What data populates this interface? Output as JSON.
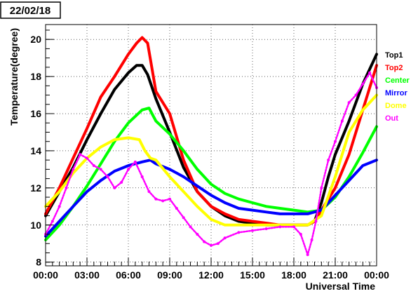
{
  "chart_data": {
    "type": "line",
    "title": "22/02/18",
    "xlabel": "Universal Time",
    "ylabel": "Temperature(degree)",
    "xlim": [
      0,
      24
    ],
    "ylim": [
      7.8,
      20.8
    ],
    "grid": true,
    "legend_placement": "right",
    "x_ticks": [
      {
        "value": 0,
        "label": "00:00"
      },
      {
        "value": 3,
        "label": "03:00"
      },
      {
        "value": 6,
        "label": "06:00"
      },
      {
        "value": 9,
        "label": "09:00"
      },
      {
        "value": 12,
        "label": "12:00"
      },
      {
        "value": 15,
        "label": "15:00"
      },
      {
        "value": 18,
        "label": "18:00"
      },
      {
        "value": 21,
        "label": "21:00"
      },
      {
        "value": 24,
        "label": "00:00"
      }
    ],
    "y_ticks": [
      {
        "value": 8,
        "label": "8"
      },
      {
        "value": 10,
        "label": "10"
      },
      {
        "value": 12,
        "label": "12"
      },
      {
        "value": 14,
        "label": "14"
      },
      {
        "value": 16,
        "label": "16"
      },
      {
        "value": 18,
        "label": "18"
      },
      {
        "value": 20,
        "label": "20"
      }
    ],
    "series": [
      {
        "name": "Top1",
        "color": "#000000",
        "points": [
          [
            0,
            10.5
          ],
          [
            1,
            11.8
          ],
          [
            2,
            13.1
          ],
          [
            3,
            14.6
          ],
          [
            4,
            16.0
          ],
          [
            5,
            17.3
          ],
          [
            6,
            18.2
          ],
          [
            6.6,
            18.6
          ],
          [
            7,
            18.6
          ],
          [
            7.4,
            18.1
          ],
          [
            8,
            16.8
          ],
          [
            9,
            15.0
          ],
          [
            10,
            13.1
          ],
          [
            11,
            11.8
          ],
          [
            12,
            11.0
          ],
          [
            13,
            10.5
          ],
          [
            14,
            10.2
          ],
          [
            15,
            10.1
          ],
          [
            16,
            10.0
          ],
          [
            17,
            10.0
          ],
          [
            18,
            10.0
          ],
          [
            19,
            10.0
          ],
          [
            19.5,
            10.2
          ],
          [
            20,
            11.2
          ],
          [
            20.5,
            12.6
          ],
          [
            21,
            13.8
          ],
          [
            22,
            15.6
          ],
          [
            23,
            17.6
          ],
          [
            24,
            19.2
          ]
        ]
      },
      {
        "name": "Top2",
        "color": "#ff0000",
        "points": [
          [
            0,
            10.6
          ],
          [
            1,
            12.0
          ],
          [
            2,
            13.6
          ],
          [
            3,
            15.2
          ],
          [
            4,
            16.9
          ],
          [
            5,
            18.0
          ],
          [
            6,
            19.2
          ],
          [
            6.6,
            19.8
          ],
          [
            7,
            20.1
          ],
          [
            7.4,
            19.8
          ],
          [
            8,
            17.2
          ],
          [
            9,
            16.0
          ],
          [
            10,
            13.5
          ],
          [
            11,
            11.8
          ],
          [
            12,
            11.0
          ],
          [
            13,
            10.6
          ],
          [
            14,
            10.3
          ],
          [
            15,
            10.2
          ],
          [
            16,
            10.1
          ],
          [
            17,
            10.0
          ],
          [
            18,
            10.0
          ],
          [
            19,
            10.0
          ],
          [
            19.5,
            10.2
          ],
          [
            20,
            10.8
          ],
          [
            21,
            12.0
          ],
          [
            22,
            13.8
          ],
          [
            23,
            16.2
          ],
          [
            24,
            18.6
          ]
        ]
      },
      {
        "name": "Center",
        "color": "#00ff00",
        "points": [
          [
            0,
            9.2
          ],
          [
            1,
            10.0
          ],
          [
            2,
            11.0
          ],
          [
            3,
            12.1
          ],
          [
            4,
            13.3
          ],
          [
            5,
            14.5
          ],
          [
            6,
            15.5
          ],
          [
            7,
            16.2
          ],
          [
            7.5,
            16.3
          ],
          [
            8,
            15.6
          ],
          [
            9,
            14.9
          ],
          [
            10,
            14.0
          ],
          [
            11,
            13.0
          ],
          [
            12,
            12.2
          ],
          [
            13,
            11.7
          ],
          [
            14,
            11.4
          ],
          [
            15,
            11.2
          ],
          [
            16,
            11.0
          ],
          [
            17,
            10.9
          ],
          [
            18,
            10.8
          ],
          [
            19,
            10.7
          ],
          [
            20,
            10.8
          ],
          [
            21,
            11.5
          ],
          [
            22,
            12.6
          ],
          [
            23,
            13.9
          ],
          [
            24,
            15.3
          ]
        ]
      },
      {
        "name": "Mirror",
        "color": "#0000ff",
        "points": [
          [
            0,
            9.4
          ],
          [
            1,
            10.2
          ],
          [
            2,
            11.0
          ],
          [
            3,
            11.8
          ],
          [
            4,
            12.4
          ],
          [
            5,
            12.9
          ],
          [
            6,
            13.2
          ],
          [
            7,
            13.4
          ],
          [
            7.6,
            13.5
          ],
          [
            8,
            13.3
          ],
          [
            9,
            13.0
          ],
          [
            10,
            12.6
          ],
          [
            11,
            12.1
          ],
          [
            12,
            11.6
          ],
          [
            13,
            11.2
          ],
          [
            14,
            10.9
          ],
          [
            15,
            10.8
          ],
          [
            16,
            10.7
          ],
          [
            17,
            10.6
          ],
          [
            18,
            10.6
          ],
          [
            19,
            10.6
          ],
          [
            20,
            10.8
          ],
          [
            21,
            11.6
          ],
          [
            22,
            12.4
          ],
          [
            23,
            13.2
          ],
          [
            24,
            13.5
          ]
        ]
      },
      {
        "name": "Dome",
        "color": "#ffff00",
        "points": [
          [
            0,
            11.0
          ],
          [
            1,
            11.8
          ],
          [
            2,
            12.8
          ],
          [
            3,
            13.6
          ],
          [
            4,
            14.2
          ],
          [
            5,
            14.6
          ],
          [
            6,
            14.7
          ],
          [
            6.8,
            14.6
          ],
          [
            7.2,
            14.0
          ],
          [
            7.6,
            13.6
          ],
          [
            8,
            13.5
          ],
          [
            9,
            12.6
          ],
          [
            10,
            11.8
          ],
          [
            11,
            11.0
          ],
          [
            12,
            10.3
          ],
          [
            13,
            10.0
          ],
          [
            14,
            10.0
          ],
          [
            15,
            10.0
          ],
          [
            16,
            10.0
          ],
          [
            17,
            10.0
          ],
          [
            18,
            10.0
          ],
          [
            19,
            10.0
          ],
          [
            20,
            10.5
          ],
          [
            21,
            12.6
          ],
          [
            22,
            15.0
          ],
          [
            23,
            16.2
          ],
          [
            24,
            17.0
          ]
        ]
      },
      {
        "name": "Out",
        "color": "#ff00ff",
        "points": [
          [
            0,
            9.5
          ],
          [
            0.5,
            10.2
          ],
          [
            1,
            11.0
          ],
          [
            1.5,
            12.0
          ],
          [
            2,
            13.0
          ],
          [
            2.5,
            13.8
          ],
          [
            3,
            13.6
          ],
          [
            3.5,
            13.2
          ],
          [
            4,
            13.0
          ],
          [
            4.5,
            12.6
          ],
          [
            5,
            12.0
          ],
          [
            5.5,
            12.3
          ],
          [
            6,
            13.0
          ],
          [
            6.5,
            13.4
          ],
          [
            7,
            12.6
          ],
          [
            7.5,
            11.8
          ],
          [
            8,
            11.4
          ],
          [
            8.5,
            11.3
          ],
          [
            9,
            11.4
          ],
          [
            9.5,
            10.9
          ],
          [
            10,
            10.4
          ],
          [
            10.5,
            9.9
          ],
          [
            11,
            9.5
          ],
          [
            11.5,
            9.1
          ],
          [
            12,
            8.9
          ],
          [
            12.5,
            9.0
          ],
          [
            13,
            9.3
          ],
          [
            14,
            9.6
          ],
          [
            15,
            9.7
          ],
          [
            16,
            9.8
          ],
          [
            17,
            9.9
          ],
          [
            18,
            9.9
          ],
          [
            18.5,
            9.5
          ],
          [
            19,
            8.4
          ],
          [
            19.3,
            9.2
          ],
          [
            19.6,
            10.2
          ],
          [
            20,
            12.0
          ],
          [
            20.5,
            13.5
          ],
          [
            21,
            14.5
          ],
          [
            21.5,
            15.6
          ],
          [
            22,
            16.6
          ],
          [
            22.5,
            17.0
          ],
          [
            23,
            17.6
          ],
          [
            23.5,
            18.2
          ],
          [
            24,
            17.4
          ]
        ]
      }
    ]
  }
}
